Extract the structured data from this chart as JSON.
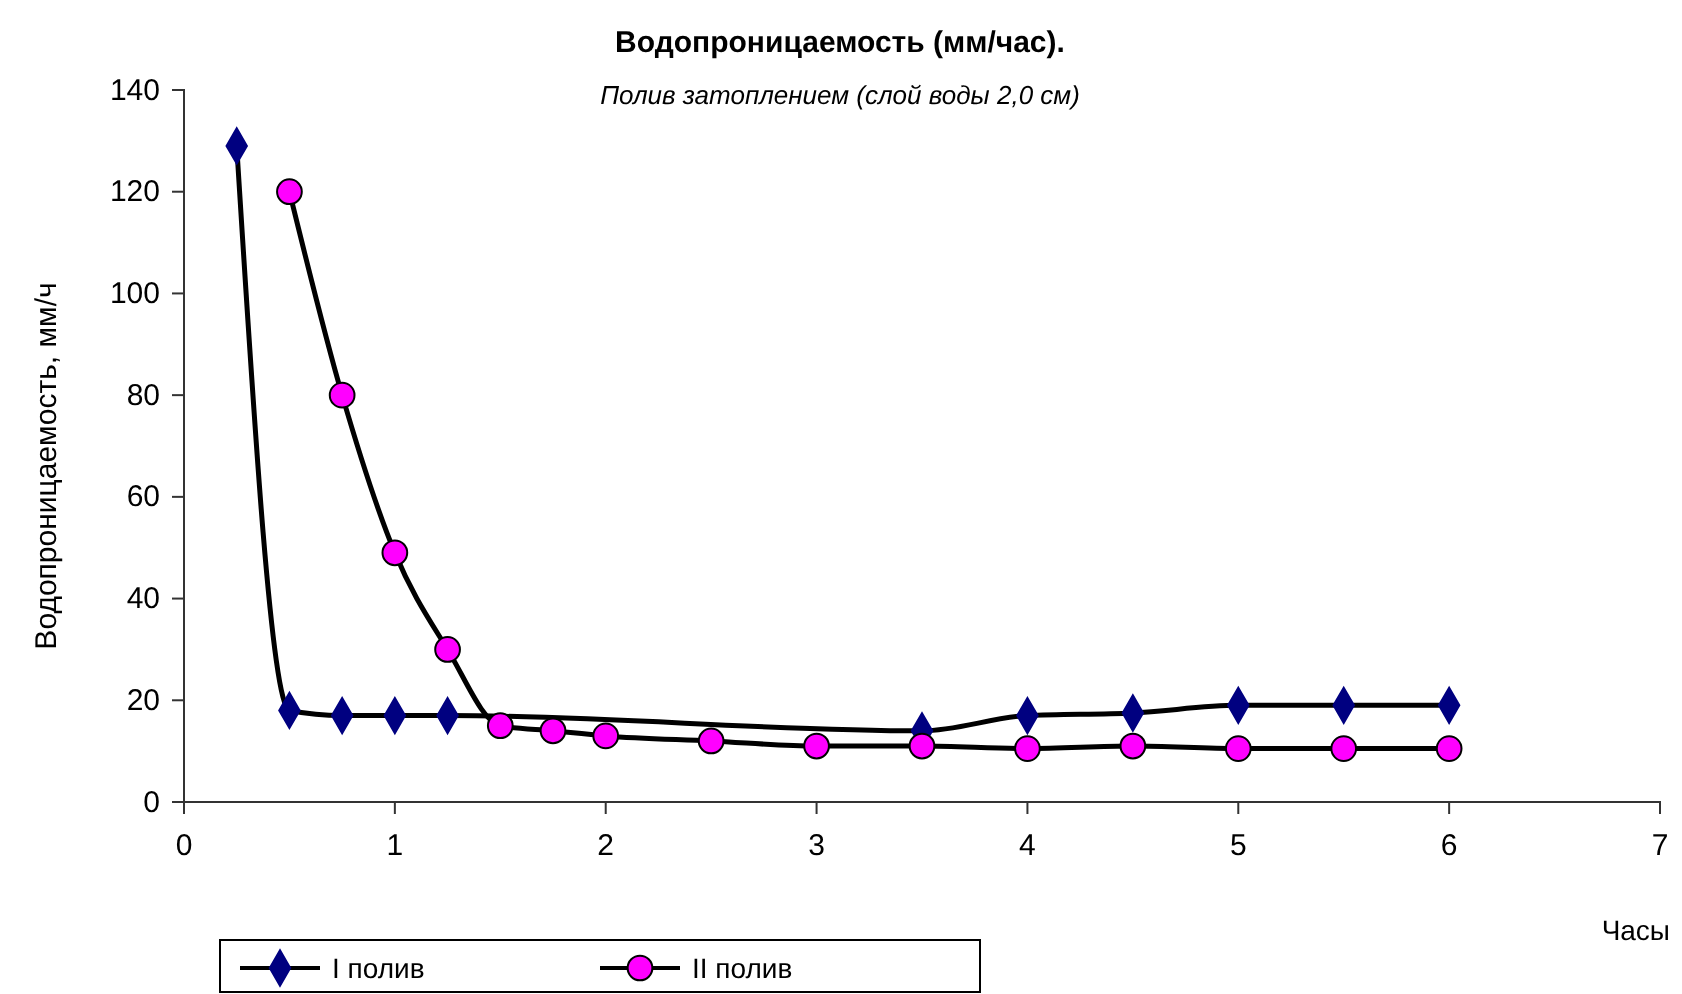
{
  "chart_data": {
    "type": "line",
    "title": "Водопроницаемость (мм/час).",
    "subtitle": "Полив затоплением (слой воды 2,0 см)",
    "xlabel": "Часы",
    "ylabel": "Водопроницаемость, мм/ч",
    "xlim": [
      0,
      7
    ],
    "xticks": [
      0,
      1,
      2,
      3,
      4,
      5,
      6,
      7
    ],
    "ylim": [
      0,
      140
    ],
    "yticks": [
      0,
      20,
      40,
      60,
      80,
      100,
      120,
      140
    ],
    "grid": false,
    "legend": "bottom",
    "series": [
      {
        "name": "I полив",
        "color": "#000080",
        "marker": "diamond",
        "x": [
          0.25,
          0.5,
          0.75,
          1,
          1.25,
          1.5,
          1.75,
          2,
          2.5,
          3,
          3.5,
          4,
          4.5,
          5,
          5.5,
          6
        ],
        "values": [
          129,
          18,
          17,
          17,
          17,
          null,
          null,
          null,
          null,
          null,
          14,
          17,
          17.5,
          19,
          19,
          19
        ]
      },
      {
        "name": "II полив",
        "color": "#ff00ff",
        "marker": "circle",
        "x": [
          0.5,
          0.75,
          1,
          1.25,
          1.5,
          1.75,
          2,
          2.5,
          3,
          3.5,
          4,
          4.5,
          5,
          5.5,
          6
        ],
        "values": [
          120,
          80,
          49,
          30,
          15,
          14,
          13,
          12,
          11,
          11,
          10.5,
          11,
          10.5,
          10.5,
          10.5
        ]
      }
    ]
  }
}
